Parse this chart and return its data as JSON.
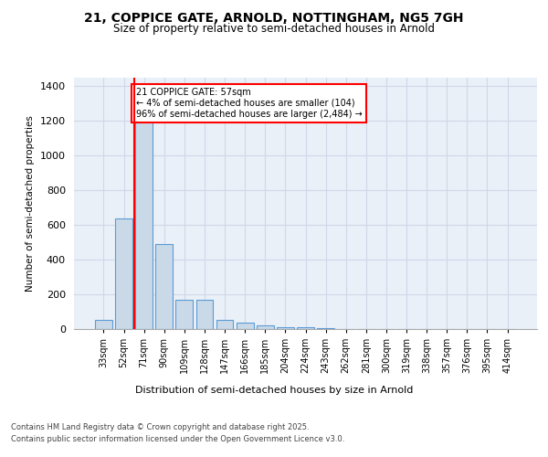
{
  "title_line1": "21, COPPICE GATE, ARNOLD, NOTTINGHAM, NG5 7GH",
  "title_line2": "Size of property relative to semi-detached houses in Arnold",
  "xlabel": "Distribution of semi-detached houses by size in Arnold",
  "ylabel": "Number of semi-detached properties",
  "categories": [
    "33sqm",
    "52sqm",
    "71sqm",
    "90sqm",
    "109sqm",
    "128sqm",
    "147sqm",
    "166sqm",
    "185sqm",
    "204sqm",
    "224sqm",
    "243sqm",
    "262sqm",
    "281sqm",
    "300sqm",
    "319sqm",
    "338sqm",
    "357sqm",
    "376sqm",
    "395sqm",
    "414sqm"
  ],
  "values": [
    55,
    640,
    1200,
    490,
    170,
    170,
    55,
    35,
    20,
    13,
    8,
    6,
    0,
    0,
    0,
    0,
    0,
    0,
    0,
    0,
    0
  ],
  "bar_color": "#c9d9e8",
  "bar_edge_color": "#5b9bd5",
  "grid_color": "#d0d8e8",
  "background_color": "#eaf0f8",
  "red_line_x": 1.5,
  "annotation_text": "21 COPPICE GATE: 57sqm\n← 4% of semi-detached houses are smaller (104)\n96% of semi-detached houses are larger (2,484) →",
  "ylim": [
    0,
    1450
  ],
  "yticks": [
    0,
    200,
    400,
    600,
    800,
    1000,
    1200,
    1400
  ],
  "footer_line1": "Contains HM Land Registry data © Crown copyright and database right 2025.",
  "footer_line2": "Contains public sector information licensed under the Open Government Licence v3.0."
}
